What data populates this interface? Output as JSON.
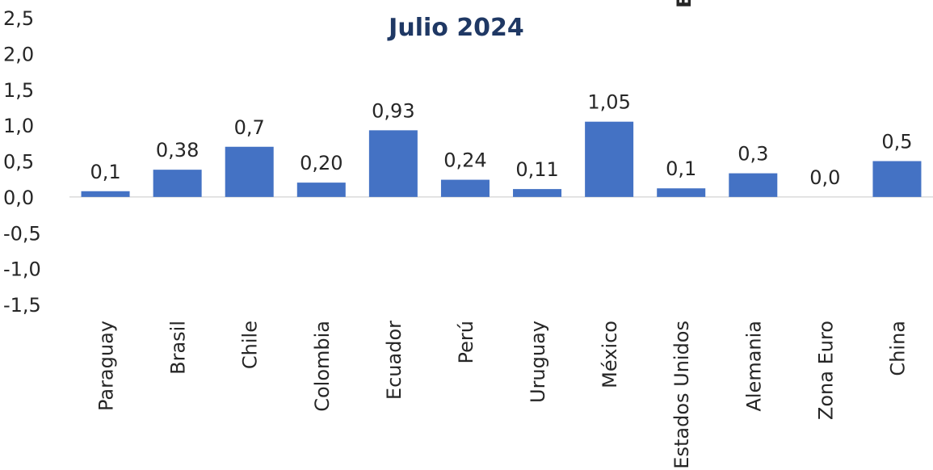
{
  "chart_data": {
    "type": "bar",
    "title": "Julio 2024",
    "corner_fragment": "E",
    "categories": [
      "Paraguay",
      "Brasil",
      "Chile",
      "Colombia",
      "Ecuador",
      "Perú",
      "Uruguay",
      "México",
      "Estados Unidos",
      "Alemania",
      "Zona Euro",
      "China"
    ],
    "values": [
      0.08,
      0.38,
      0.7,
      0.2,
      0.93,
      0.24,
      0.11,
      1.05,
      0.12,
      0.33,
      0.0,
      0.5
    ],
    "data_labels": [
      "0,1",
      "0,38",
      "0,7",
      "0,20",
      "0,93",
      "0,24",
      "0,11",
      "1,05",
      "0,1",
      "0,3",
      "0,0",
      "0,5"
    ],
    "yticks": [
      "2,5",
      "2,0",
      "1,5",
      "1,0",
      "0,5",
      "0,0",
      "-0,5",
      "-1,0",
      "-1,5"
    ],
    "ylim": [
      -1.5,
      2.5
    ],
    "bar_color": "#4472c4",
    "axis_color": "#d9d9d9",
    "grid": false,
    "legend": "none"
  }
}
